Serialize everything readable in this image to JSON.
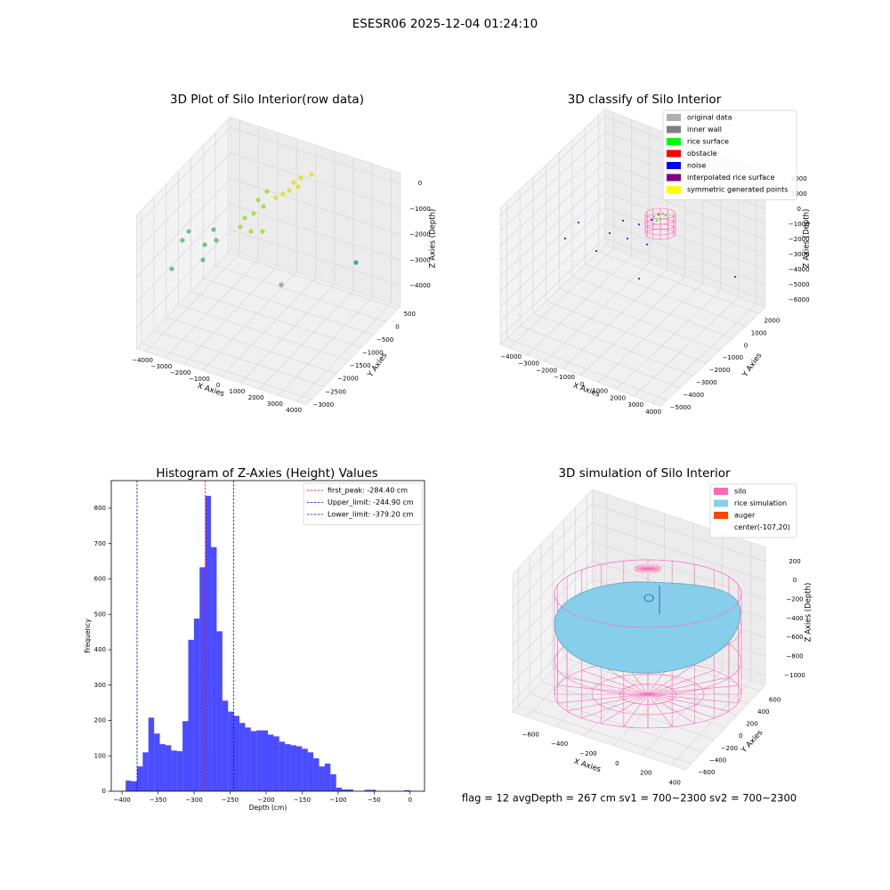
{
  "title": "ESESR06 2025-12-04 01:24:10",
  "footer": "flag = 12  avgDepth = 267 cm  sv1 = 700~2300  sv2 = 700~2300",
  "chart_data": [
    {
      "type": "scatter3d",
      "title": "3D Plot of Silo Interior(row data)",
      "xlabel": "X Axies",
      "ylabel": "Y Axies",
      "zlabel": "Z Axies (Depth)",
      "xlim": [
        -4500,
        4500
      ],
      "ylim": [
        -3200,
        600
      ],
      "zlim": [
        -4800,
        400
      ],
      "xticks": [
        {
          "value": -4000,
          "label": "−4000"
        },
        {
          "value": -3000,
          "label": "−3000"
        },
        {
          "value": -2000,
          "label": "−2000"
        },
        {
          "value": -1000,
          "label": "−1000"
        },
        0,
        1000,
        2000,
        3000,
        4000
      ],
      "yticks": [
        500,
        0,
        {
          "value": -500,
          "label": "−500"
        },
        {
          "value": -1000,
          "label": "−1000"
        },
        {
          "value": -1500,
          "label": "−1500"
        },
        {
          "value": -2000,
          "label": "−2000"
        },
        {
          "value": -2500,
          "label": "−2500"
        },
        {
          "value": -3000,
          "label": "−3000"
        }
      ],
      "zticks": [
        0,
        {
          "value": -1000,
          "label": "−1000"
        },
        {
          "value": -2000,
          "label": "−2000"
        },
        {
          "value": -3000,
          "label": "−3000"
        },
        {
          "value": -4000,
          "label": "−4000"
        }
      ],
      "series": [
        {
          "color": "#dfe318",
          "x": [
            -367,
            9,
            574,
            -132,
            -602,
            -932,
            -1308
          ],
          "y": [
            0,
            0,
            0,
            0,
            0,
            0,
            0
          ],
          "z": [
            -543,
            -276,
            0,
            -657,
            -911,
            -1130,
            -1363
          ]
        },
        {
          "color": "#a0da39",
          "x": [
            -1779,
            -2249,
            -1967,
            -2485,
            -2955,
            -2626,
            -3191,
            -2014
          ],
          "y": [
            0,
            0,
            0,
            0,
            0,
            0,
            0,
            0
          ],
          "z": [
            -1235,
            -1694,
            -1871,
            -2275,
            -2563,
            -3005,
            -2967,
            -2856
          ]
        },
        {
          "color": "#4ac16d",
          "x": [
            -2645,
            -2504,
            -3115,
            -3962,
            -4296,
            -3209,
            -3553
          ],
          "y": [
            -1500,
            -1500,
            -1500,
            -1500,
            -1500,
            -1500,
            -2500
          ],
          "z": [
            -1419,
            -1802,
            -2125,
            -1809,
            -2240,
            -2741,
            -2163
          ]
        },
        {
          "color": "#1fa187",
          "x": [
            2927
          ],
          "y": [
            0
          ],
          "z": [
            -2870
          ]
        },
        {
          "color": "#999999",
          "x": [
            -1026
          ],
          "y": [
            0
          ],
          "z": [
            -4703
          ]
        }
      ]
    },
    {
      "type": "scatter3d",
      "title": "3D classify of Silo Interior",
      "xlabel": "X Axies",
      "ylabel": "Y Axies",
      "zlabel": "Z Axies (Depth)",
      "xlim": [
        -4500,
        4500
      ],
      "ylim": [
        -5500,
        2500
      ],
      "zlim": [
        -6500,
        2500
      ],
      "xticks": [
        {
          "value": -4000,
          "label": "−4000"
        },
        {
          "value": -3000,
          "label": "−3000"
        },
        {
          "value": -2000,
          "label": "−2000"
        },
        {
          "value": -1000,
          "label": "−1000"
        },
        0,
        1000,
        2000,
        3000,
        4000
      ],
      "yticks": [
        2000,
        1000,
        0,
        {
          "value": -1000,
          "label": "−1000"
        },
        {
          "value": -2000,
          "label": "−2000"
        },
        {
          "value": -3000,
          "label": "−3000"
        },
        {
          "value": -4000,
          "label": "−4000"
        },
        {
          "value": -5000,
          "label": "−5000"
        }
      ],
      "zticks": [
        2000,
        1000,
        0,
        {
          "value": -1000,
          "label": "−1000"
        },
        {
          "value": -2000,
          "label": "−2000"
        },
        {
          "value": -3000,
          "label": "−3000"
        },
        {
          "value": -4000,
          "label": "−4000"
        },
        {
          "value": -5000,
          "label": "−5000"
        },
        {
          "value": -6000,
          "label": "−6000"
        }
      ],
      "legend": "upper right",
      "series": [
        {
          "name": "original data",
          "color": "#b0b0b0",
          "x": [],
          "y": [],
          "z": []
        },
        {
          "name": "inner wall",
          "color": "#808080",
          "x": [],
          "y": [],
          "z": []
        },
        {
          "name": "rice surface",
          "color": "#00ff00",
          "x": [
            100,
            450,
            750,
            250,
            600
          ],
          "y": [
            0,
            0,
            0,
            0,
            0
          ],
          "z": [
            -429,
            -447,
            -76,
            -659,
            -29
          ]
        },
        {
          "name": "obstacle",
          "color": "#ff0000",
          "x": [
            350
          ],
          "y": [
            0
          ],
          "z": [
            -200
          ]
        },
        {
          "name": "noise",
          "color": "#0000ff",
          "x": [
            -4150,
            -3800,
            -3150,
            -2400,
            -1650,
            -1400,
            -750,
            -300,
            3915,
            -750,
            -50
          ],
          "y": [
            0,
            -1500,
            0,
            0,
            0,
            0,
            0,
            0,
            1000,
            0,
            0
          ],
          "z": [
            -2782,
            -2453,
            -4206,
            -2688,
            -1524,
            -2588,
            -1359,
            -2476,
            -3512,
            -4935,
            -735
          ]
        },
        {
          "name": "interpolated rice surface",
          "color": "#800080",
          "x": [],
          "y": [],
          "z": []
        },
        {
          "name": "symmetric generated points",
          "color": "#ffff00",
          "x": [],
          "y": [],
          "z": []
        }
      ]
    },
    {
      "type": "histogram",
      "title": "Histogram of Z-Axies (Height) Values",
      "xlabel": "Depth (cm)",
      "ylabel": "Frequency",
      "color": "#0000ff",
      "alpha": 0.7,
      "bins": [
        -395.0,
        -387.1,
        -379.2,
        -371.3,
        -363.4,
        -355.5,
        -347.6,
        -339.7,
        -331.8,
        -323.9,
        -316.0,
        -308.1,
        -300.2,
        -292.3,
        -284.4,
        -276.5,
        -268.6,
        -260.7,
        -252.8,
        -244.9,
        -237.0,
        -229.1,
        -221.2,
        -213.3,
        -205.4,
        -197.5,
        -189.6,
        -181.7,
        -173.8,
        -165.9,
        -158.0,
        -150.1,
        -142.2,
        -134.3,
        -126.4,
        -118.5,
        -110.6,
        -102.7,
        -94.8,
        -86.9,
        -79.0,
        -71.1,
        -63.2,
        -55.3,
        -47.4,
        -39.5,
        -31.6,
        -23.7,
        -15.8,
        -7.9,
        0.0
      ],
      "counts": [
        30,
        28,
        70,
        110,
        208,
        163,
        133,
        130,
        115,
        113,
        198,
        428,
        488,
        633,
        835,
        690,
        452,
        256,
        225,
        213,
        193,
        180,
        170,
        172,
        172,
        160,
        155,
        140,
        133,
        130,
        127,
        120,
        110,
        93,
        70,
        78,
        48,
        10,
        5,
        5,
        0,
        0,
        4,
        4,
        0,
        0,
        0,
        0,
        0,
        3
      ],
      "xlim": [
        -415,
        20
      ],
      "ylim": [
        0,
        878
      ],
      "xticks": [
        {
          "value": -400,
          "label": "−400"
        },
        {
          "value": -350,
          "label": "−350"
        },
        {
          "value": -300,
          "label": "−300"
        },
        {
          "value": -250,
          "label": "−250"
        },
        {
          "value": -200,
          "label": "−200"
        },
        {
          "value": -150,
          "label": "−150"
        },
        {
          "value": -100,
          "label": "−100"
        },
        {
          "value": -50,
          "label": "−50"
        },
        0
      ],
      "yticks": [
        0,
        100,
        200,
        300,
        400,
        500,
        600,
        700,
        800
      ],
      "legend": "upper right",
      "lines": [
        {
          "name": "first_peak: -284.40 cm",
          "color": "#ff0000",
          "value": -284.4
        },
        {
          "name": "Upper_limit: -244.90 cm",
          "color": "#0000ff",
          "value": -244.9
        },
        {
          "name": "Lower_limit: -379.20 cm",
          "color": "#0000ff",
          "value": -379.2
        }
      ]
    },
    {
      "type": "surface3d",
      "title": "3D simulation of Silo Interior",
      "xlabel": "X Axies",
      "ylabel": "Y Axies",
      "zlabel": "Z Axies (Depth)",
      "xlim": [
        -700,
        500
      ],
      "ylim": [
        -700,
        700
      ],
      "zlim": [
        -1100,
        350
      ],
      "xticks": [
        {
          "value": -600,
          "label": "−600"
        },
        {
          "value": -400,
          "label": "−400"
        },
        {
          "value": -200,
          "label": "−200"
        },
        0,
        200,
        400
      ],
      "yticks": [
        600,
        400,
        200,
        0,
        {
          "value": -200,
          "label": "−200"
        },
        {
          "value": -400,
          "label": "−400"
        },
        {
          "value": -600,
          "label": "−600"
        }
      ],
      "zticks": [
        200,
        0,
        {
          "value": -200,
          "label": "−200"
        },
        {
          "value": -400,
          "label": "−400"
        },
        {
          "value": -600,
          "label": "−600"
        },
        {
          "value": -800,
          "label": "−800"
        },
        {
          "value": -1000,
          "label": "−1000"
        }
      ],
      "legend": "upper right",
      "series": [
        {
          "name": "silo",
          "color": "#ff69b4"
        },
        {
          "name": "rice simulation",
          "color": "#87ceeb"
        },
        {
          "name": "auger",
          "color": "#ff4500"
        },
        {
          "name": "center(-107,20)"
        }
      ]
    }
  ]
}
